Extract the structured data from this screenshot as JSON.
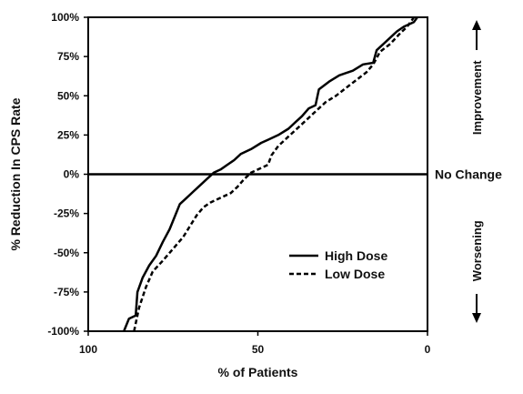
{
  "chart_data": {
    "type": "line",
    "xlabel": "% of Patients",
    "ylabel": "% Reduction In CPS Rate",
    "xlim": [
      100,
      0
    ],
    "ylim": [
      -100,
      100
    ],
    "x_reversed": true,
    "x_ticks": [
      {
        "value": 100,
        "label": "100"
      },
      {
        "value": 50,
        "label": "50"
      },
      {
        "value": 0,
        "label": "0"
      }
    ],
    "y_ticks": [
      {
        "value": 100,
        "label": "100%"
      },
      {
        "value": 75,
        "label": "75%"
      },
      {
        "value": 50,
        "label": "50%"
      },
      {
        "value": 25,
        "label": "25%"
      },
      {
        "value": 0,
        "label": "0%"
      },
      {
        "value": -25,
        "label": "-25%"
      },
      {
        "value": -50,
        "label": "-50%"
      },
      {
        "value": -75,
        "label": "-75%"
      },
      {
        "value": -100,
        "label": "-100%"
      }
    ],
    "zero_line_label": "No Change",
    "region_labels": {
      "upper": "Improvement",
      "lower": "Worsening"
    },
    "legend_position": "lower-right",
    "series": [
      {
        "name": "High Dose",
        "style": "solid",
        "points": [
          [
            89.5,
            -100
          ],
          [
            88,
            -92
          ],
          [
            86,
            -90
          ],
          [
            85.5,
            -75
          ],
          [
            84,
            -66
          ],
          [
            82,
            -58
          ],
          [
            80,
            -52
          ],
          [
            78,
            -43
          ],
          [
            76,
            -35
          ],
          [
            74.5,
            -27
          ],
          [
            73,
            -19
          ],
          [
            71,
            -15
          ],
          [
            69,
            -11
          ],
          [
            67,
            -7
          ],
          [
            65,
            -3
          ],
          [
            63,
            1
          ],
          [
            61,
            3
          ],
          [
            59,
            6
          ],
          [
            57,
            9
          ],
          [
            55,
            13
          ],
          [
            52,
            16
          ],
          [
            49,
            20
          ],
          [
            47,
            22
          ],
          [
            44,
            25
          ],
          [
            41,
            29
          ],
          [
            39,
            33
          ],
          [
            37,
            37
          ],
          [
            35,
            42
          ],
          [
            33,
            44
          ],
          [
            32,
            54
          ],
          [
            29,
            59
          ],
          [
            26,
            63
          ],
          [
            22,
            66
          ],
          [
            19,
            70
          ],
          [
            16,
            71
          ],
          [
            15,
            79
          ],
          [
            12,
            85
          ],
          [
            9,
            91
          ],
          [
            7,
            94
          ],
          [
            4,
            97
          ],
          [
            3,
            100
          ]
        ]
      },
      {
        "name": "Low Dose",
        "style": "dashed",
        "points": [
          [
            86.5,
            -100
          ],
          [
            85,
            -85
          ],
          [
            83,
            -72
          ],
          [
            81,
            -62
          ],
          [
            78,
            -55
          ],
          [
            76,
            -50
          ],
          [
            74,
            -45
          ],
          [
            72,
            -40
          ],
          [
            70,
            -33
          ],
          [
            68,
            -26
          ],
          [
            66,
            -21
          ],
          [
            64,
            -18
          ],
          [
            61,
            -15
          ],
          [
            58,
            -12
          ],
          [
            56,
            -8
          ],
          [
            54,
            -3
          ],
          [
            52,
            1
          ],
          [
            50,
            3
          ],
          [
            47,
            6
          ],
          [
            46,
            12
          ],
          [
            44,
            18
          ],
          [
            41,
            24
          ],
          [
            38,
            30
          ],
          [
            35,
            36
          ],
          [
            33,
            40
          ],
          [
            30,
            46
          ],
          [
            27,
            50
          ],
          [
            24,
            55
          ],
          [
            21,
            60
          ],
          [
            18,
            65
          ],
          [
            16,
            70
          ],
          [
            14,
            78
          ],
          [
            11,
            83
          ],
          [
            8,
            90
          ],
          [
            6,
            94
          ],
          [
            4,
            100
          ]
        ]
      }
    ]
  }
}
